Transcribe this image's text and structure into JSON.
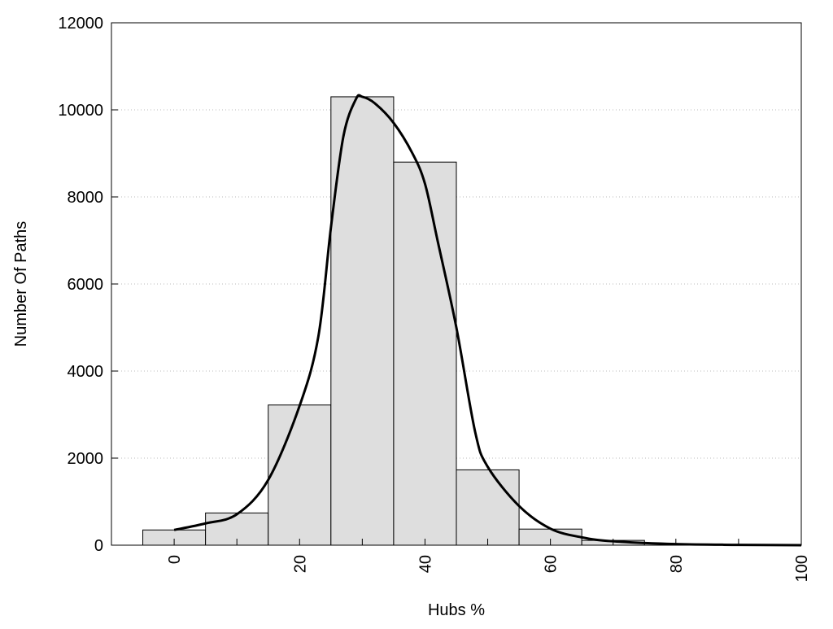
{
  "chart_data": {
    "type": "bar",
    "title": "",
    "xlabel": "Hubs %",
    "ylabel": "Number Of Paths",
    "xlim": [
      -10,
      100
    ],
    "ylim": [
      0,
      12000
    ],
    "x_ticks": [
      0,
      20,
      40,
      60,
      80,
      100
    ],
    "x_minor_ticks": [
      10,
      30,
      50,
      70,
      90
    ],
    "y_ticks": [
      0,
      2000,
      4000,
      6000,
      8000,
      10000,
      12000
    ],
    "grid": "horizontal dotted",
    "bar_width": 10,
    "bars": {
      "x": [
        0,
        10,
        20,
        30,
        40,
        50,
        60,
        70
      ],
      "values": [
        350,
        740,
        3220,
        10300,
        8800,
        1730,
        370,
        110
      ],
      "color": "#dedede"
    },
    "curve": {
      "x": [
        0,
        5,
        10,
        15,
        20,
        23,
        25,
        27,
        29,
        30,
        32,
        35,
        38,
        40,
        42,
        45,
        48,
        50,
        55,
        60,
        65,
        70,
        80,
        90,
        100
      ],
      "y": [
        350,
        500,
        710,
        1500,
        3200,
        4800,
        7300,
        9400,
        10250,
        10300,
        10150,
        9700,
        9000,
        8300,
        7000,
        5000,
        2600,
        1800,
        900,
        380,
        180,
        90,
        25,
        8,
        0
      ],
      "color": "#000000"
    }
  }
}
